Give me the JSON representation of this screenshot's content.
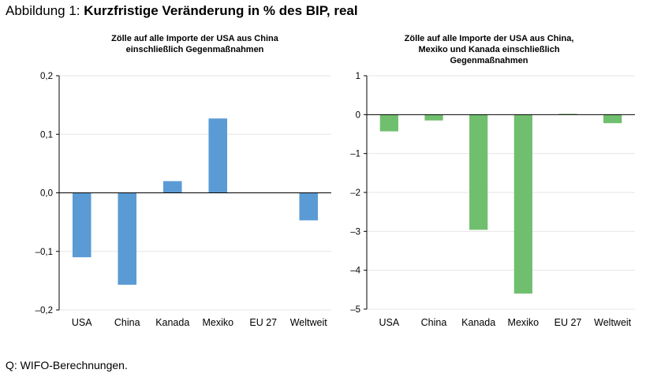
{
  "figure": {
    "title_prefix": "Abbildung 1: ",
    "title_main": "Kurzfristige Veränderung in % des BIP, real",
    "source": "Q: WIFO-Berechnungen."
  },
  "chart_data": [
    {
      "type": "bar",
      "title": [
        "Zölle auf alle Importe der USA aus China",
        "einschließlich Gegenmaßnahmen"
      ],
      "categories": [
        "USA",
        "China",
        "Kanada",
        "Mexiko",
        "EU 27",
        "Weltweit"
      ],
      "values": [
        -0.11,
        -0.157,
        0.02,
        0.127,
        0.0,
        -0.047
      ],
      "ylim": [
        -0.2,
        0.2
      ],
      "yticks": [
        0.2,
        0.1,
        0.0,
        -0.1,
        -0.2
      ],
      "ytick_labels": [
        "0,2",
        "0,1",
        "0,0",
        "–0,1",
        "–0,2"
      ],
      "color": "#5B9BD5",
      "grid": true
    },
    {
      "type": "bar",
      "title": [
        "Zölle auf alle Importe der USA aus China,",
        "Mexiko und Kanada einschließlich",
        "Gegenmaßnahmen"
      ],
      "categories": [
        "USA",
        "China",
        "Kanada",
        "Mexiko",
        "EU 27",
        "Weltweit"
      ],
      "values": [
        -0.43,
        -0.15,
        -2.96,
        -4.6,
        0.02,
        -0.22
      ],
      "ylim": [
        -5,
        1
      ],
      "yticks": [
        1,
        0,
        -1,
        -2,
        -3,
        -4,
        -5
      ],
      "ytick_labels": [
        "1",
        "0",
        "–1",
        "–2",
        "–3",
        "–4",
        "–5"
      ],
      "color": "#70BF6E",
      "grid": true
    }
  ]
}
